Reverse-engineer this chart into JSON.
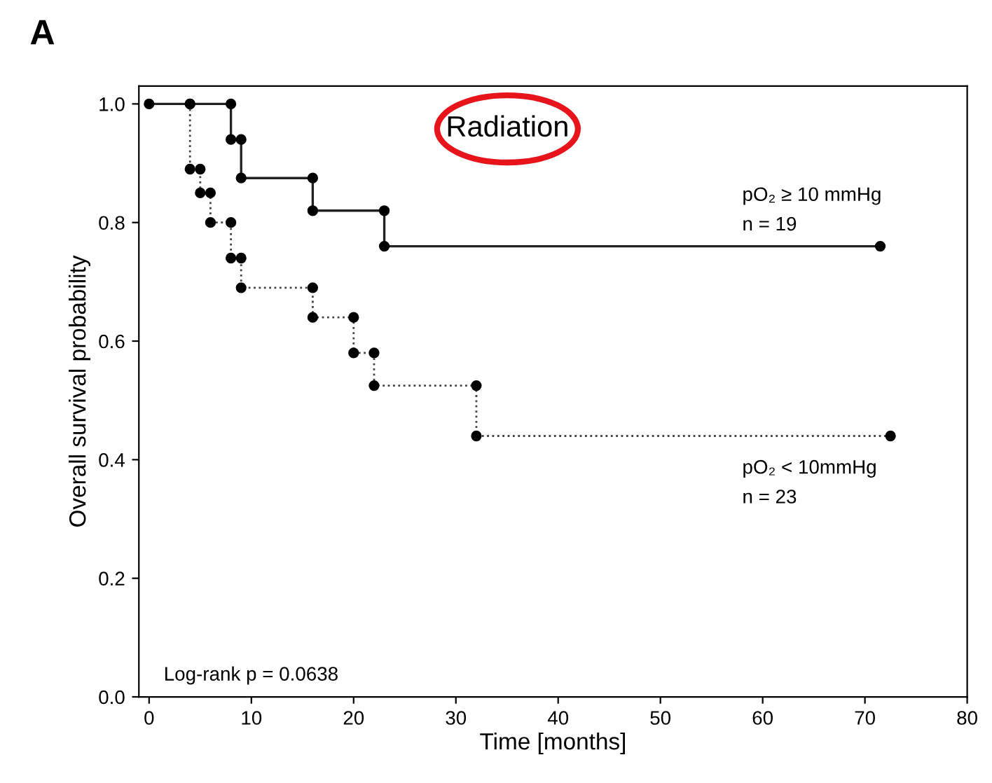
{
  "chart_data": {
    "type": "step",
    "title": "A",
    "xlabel": "Time [months]",
    "ylabel": "Overall survival probability",
    "xlim": [
      -1,
      80
    ],
    "xticks": [
      0,
      10,
      20,
      30,
      40,
      50,
      60,
      70,
      80
    ],
    "ylim": [
      0,
      1.03
    ],
    "yticks": [
      {
        "value": 0,
        "label": "0.0"
      },
      {
        "value": 0.2,
        "label": "0.2"
      },
      {
        "value": 0.4,
        "label": "0.4"
      },
      {
        "value": 0.6,
        "label": "0.6"
      },
      {
        "value": 0.8,
        "label": "0.8"
      },
      {
        "value": 1,
        "label": "1.0"
      }
    ],
    "grid": false,
    "marker": "circle",
    "series": [
      {
        "name": "pO₂ ≥ 10 mmHg",
        "color": "#222222",
        "line_style": "solid",
        "x": [
          0,
          4,
          8,
          8,
          9,
          9,
          16,
          16,
          23,
          23,
          71.5
        ],
        "values": [
          1,
          1,
          1,
          0.94,
          0.94,
          0.875,
          0.875,
          0.82,
          0.82,
          0.76,
          0.76
        ]
      },
      {
        "name": "pO₂ < 10mmHg",
        "color": "#444444",
        "line_style": "dotted",
        "x": [
          4,
          4,
          5,
          5,
          6,
          6,
          8,
          8,
          9,
          9,
          16,
          16,
          20,
          20,
          22,
          22,
          32,
          32,
          72.5
        ],
        "values": [
          1,
          0.89,
          0.89,
          0.85,
          0.85,
          0.8,
          0.8,
          0.74,
          0.74,
          0.69,
          0.69,
          0.64,
          0.64,
          0.58,
          0.58,
          0.525,
          0.525,
          0.44,
          0.44
        ]
      }
    ],
    "annotations": [
      "n = 19",
      "n = 23",
      "Radiation",
      "Log-rank p = 0.0638"
    ]
  }
}
